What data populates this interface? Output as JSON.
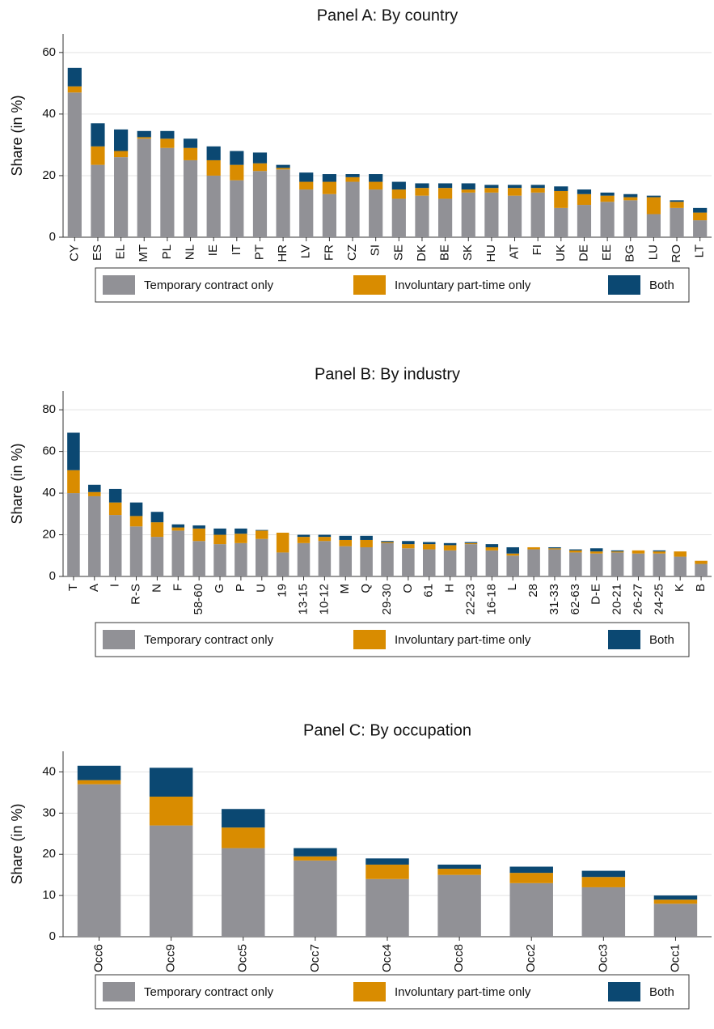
{
  "chart_data": [
    {
      "type": "bar",
      "stacked": true,
      "title": "Panel A: By country",
      "y_label": "Share (in %)",
      "categories": [
        "CY",
        "ES",
        "EL",
        "MT",
        "PL",
        "NL",
        "IE",
        "IT",
        "PT",
        "HR",
        "LV",
        "FR",
        "CZ",
        "SI",
        "SE",
        "DK",
        "BE",
        "SK",
        "HU",
        "AT",
        "FI",
        "UK",
        "DE",
        "EE",
        "BG",
        "LU",
        "RO",
        "LT"
      ],
      "series": [
        {
          "name": "Temporary contract only",
          "color": "#919196",
          "values": [
            47,
            23.5,
            26,
            32,
            29,
            25,
            20,
            18.5,
            21.5,
            22,
            15.5,
            14,
            18,
            15.5,
            12.5,
            13.5,
            12.5,
            14.5,
            14.5,
            13.5,
            14.5,
            9.5,
            10.5,
            11.5,
            12,
            7.5,
            9.5,
            5.5
          ]
        },
        {
          "name": "Involuntary part-time only",
          "color": "#d98c00",
          "values": [
            2,
            6,
            2,
            0.5,
            3,
            4,
            5,
            5,
            2.5,
            0.5,
            2.5,
            4,
            1.5,
            2.5,
            3,
            2.5,
            3.5,
            1,
            1.5,
            2.5,
            1.5,
            5.5,
            3.5,
            2,
            1,
            5.5,
            2,
            2.5
          ]
        },
        {
          "name": "Both",
          "color": "#0b4872",
          "values": [
            6,
            7.5,
            7,
            2,
            2.5,
            3,
            4.5,
            4.5,
            3.5,
            1,
            3,
            2.5,
            1,
            2.5,
            2.5,
            1.5,
            1.5,
            2,
            1,
            1,
            1,
            1.5,
            1.5,
            1,
            1,
            0.5,
            0.5,
            1.5
          ]
        }
      ],
      "ylim": [
        0,
        66
      ],
      "yticks": [
        0,
        20,
        40,
        60
      ],
      "grid": true
    },
    {
      "type": "bar",
      "stacked": true,
      "title": "Panel B: By industry",
      "y_label": "Share (in %)",
      "categories": [
        "T",
        "A",
        "I",
        "R-S",
        "N",
        "F",
        "58-60",
        "G",
        "P",
        "U",
        "19",
        "13-15",
        "10-12",
        "M",
        "Q",
        "29-30",
        "O",
        "61",
        "H",
        "22-23",
        "16-18",
        "L",
        "28",
        "31-33",
        "62-63",
        "D-E",
        "20-21",
        "26-27",
        "24-25",
        "K",
        "B"
      ],
      "series": [
        {
          "name": "Temporary contract only",
          "color": "#919196",
          "values": [
            40,
            38.5,
            29.5,
            24,
            19,
            22,
            17,
            15.5,
            16,
            18,
            11.5,
            16,
            17,
            14.5,
            14,
            16,
            13.5,
            13,
            12.5,
            15.5,
            12.5,
            10,
            13,
            13,
            11.5,
            11,
            11.5,
            11,
            11,
            9.5,
            6
          ]
        },
        {
          "name": "Involuntary part-time only",
          "color": "#d98c00",
          "values": [
            11,
            2,
            6,
            5,
            7,
            1.5,
            6,
            4.5,
            4.5,
            4,
            9.5,
            3,
            2,
            3,
            3.5,
            0.5,
            2,
            2.5,
            2.5,
            0.5,
            1.5,
            1,
            1,
            0.5,
            1,
            1,
            0.5,
            1.5,
            1,
            2.5,
            1.5
          ]
        },
        {
          "name": "Both",
          "color": "#0b4872",
          "values": [
            18,
            3.5,
            6.5,
            6.5,
            5,
            1.5,
            1.5,
            3,
            2.5,
            0.3,
            0,
            1,
            1,
            2,
            2,
            0.5,
            1.5,
            1,
            1,
            0.5,
            1.5,
            3,
            0,
            0.5,
            0.5,
            1.5,
            0.5,
            0,
            0.5,
            0,
            0
          ]
        }
      ],
      "ylim": [
        0,
        89
      ],
      "yticks": [
        0,
        20,
        40,
        60,
        80
      ],
      "grid": true
    },
    {
      "type": "bar",
      "stacked": true,
      "title": "Panel C: By occupation",
      "y_label": "Share (in %)",
      "categories": [
        "Occ6",
        "Occ9",
        "Occ5",
        "Occ7",
        "Occ4",
        "Occ8",
        "Occ2",
        "Occ3",
        "Occ1"
      ],
      "series": [
        {
          "name": "Temporary contract only",
          "color": "#919196",
          "values": [
            37,
            27,
            21.5,
            18.5,
            14,
            15,
            13,
            12,
            8
          ]
        },
        {
          "name": "Involuntary part-time only",
          "color": "#d98c00",
          "values": [
            1,
            7,
            5,
            1,
            3.5,
            1.5,
            2.5,
            2.5,
            1
          ]
        },
        {
          "name": "Both",
          "color": "#0b4872",
          "values": [
            3.5,
            7,
            4.5,
            2,
            1.5,
            1,
            1.5,
            1.5,
            1
          ]
        }
      ],
      "ylim": [
        0,
        45
      ],
      "yticks": [
        0,
        10,
        20,
        30,
        40
      ],
      "grid": true
    }
  ]
}
